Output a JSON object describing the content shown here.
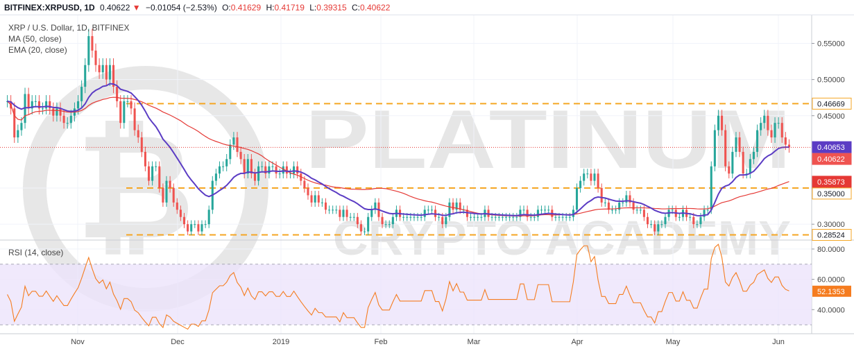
{
  "header": {
    "symbol": "BITFINEX:XRPUSD, 1D",
    "last": "0.40622",
    "arrow": "▼",
    "change": "−0.01054 (−2.53%)",
    "o_label": "O:",
    "o": "0.41629",
    "h_label": "H:",
    "h": "0.41719",
    "l_label": "L:",
    "l": "0.39315",
    "c_label": "C:",
    "c": "0.40622"
  },
  "watermark": {
    "line1": "PLATINUM",
    "line2": "CRYPTO ACADEMY"
  },
  "colors": {
    "up": "#26a69a",
    "down": "#ef5350",
    "ma50": "#e53935",
    "ema20": "#5b3cc4",
    "level": "#f5a623",
    "rsi": "#f57c1f",
    "rsi_band": "#ece3fb",
    "price_line": "#e53935"
  },
  "chart_data": [
    {
      "type": "candlestick",
      "title": "XRP / U.S. Dollar, 1D, BITFINEX",
      "indicators": [
        "MA (50, close)",
        "EMA (20, close)"
      ],
      "x_ticks": [
        "Nov",
        "Dec",
        "2019",
        "Feb",
        "Mar",
        "Apr",
        "May",
        "Jun"
      ],
      "y_ticks": [
        "0.55000",
        "0.50000",
        "0.45000",
        "0.35000",
        "0.30000"
      ],
      "ylim": [
        0.28,
        0.585
      ],
      "horizontal_levels": [
        0.46669,
        0.35,
        0.28524
      ],
      "price_tags": [
        {
          "value": 0.46669,
          "label": "0.46669",
          "bg": "#ffffff",
          "fg": "#131722",
          "border": "#f5a623"
        },
        {
          "value": 0.40653,
          "label": "0.40653",
          "bg": "#5b3cc4",
          "fg": "#ffffff",
          "border": "#5b3cc4"
        },
        {
          "value": 0.40622,
          "label": "0.40622",
          "bg": "#ef5350",
          "fg": "#ffffff",
          "border": "#ef5350"
        },
        {
          "value": 0.35873,
          "label": "0.35873",
          "bg": "#e53935",
          "fg": "#ffffff",
          "border": "#e53935"
        },
        {
          "value": 0.35,
          "label": "0.35000",
          "bg": "#ffffff",
          "fg": "#131722",
          "border": "#f5a623"
        },
        {
          "value": 0.28524,
          "label": "0.28524",
          "bg": "#ffffff",
          "fg": "#131722",
          "border": "#f5a623"
        }
      ],
      "closes": [
        0.47,
        0.46,
        0.42,
        0.43,
        0.44,
        0.48,
        0.46,
        0.47,
        0.47,
        0.46,
        0.46,
        0.47,
        0.46,
        0.45,
        0.46,
        0.45,
        0.44,
        0.44,
        0.45,
        0.46,
        0.47,
        0.49,
        0.52,
        0.56,
        0.54,
        0.52,
        0.51,
        0.52,
        0.5,
        0.52,
        0.49,
        0.47,
        0.44,
        0.47,
        0.47,
        0.46,
        0.43,
        0.42,
        0.4,
        0.38,
        0.36,
        0.38,
        0.38,
        0.35,
        0.33,
        0.36,
        0.35,
        0.33,
        0.32,
        0.31,
        0.3,
        0.29,
        0.3,
        0.3,
        0.29,
        0.3,
        0.3,
        0.32,
        0.36,
        0.37,
        0.38,
        0.38,
        0.39,
        0.41,
        0.42,
        0.4,
        0.39,
        0.37,
        0.39,
        0.37,
        0.36,
        0.38,
        0.38,
        0.37,
        0.38,
        0.38,
        0.37,
        0.37,
        0.38,
        0.37,
        0.37,
        0.38,
        0.37,
        0.36,
        0.35,
        0.34,
        0.33,
        0.34,
        0.33,
        0.33,
        0.32,
        0.32,
        0.32,
        0.32,
        0.31,
        0.32,
        0.31,
        0.31,
        0.31,
        0.3,
        0.29,
        0.29,
        0.31,
        0.32,
        0.33,
        0.31,
        0.3,
        0.3,
        0.3,
        0.31,
        0.32,
        0.31,
        0.31,
        0.31,
        0.31,
        0.31,
        0.31,
        0.31,
        0.32,
        0.32,
        0.32,
        0.31,
        0.31,
        0.3,
        0.31,
        0.33,
        0.32,
        0.33,
        0.32,
        0.32,
        0.31,
        0.31,
        0.31,
        0.31,
        0.31,
        0.32,
        0.31,
        0.31,
        0.31,
        0.31,
        0.31,
        0.31,
        0.31,
        0.31,
        0.31,
        0.32,
        0.32,
        0.31,
        0.31,
        0.31,
        0.32,
        0.32,
        0.32,
        0.32,
        0.31,
        0.31,
        0.31,
        0.31,
        0.31,
        0.31,
        0.32,
        0.35,
        0.36,
        0.37,
        0.37,
        0.36,
        0.37,
        0.35,
        0.33,
        0.33,
        0.32,
        0.32,
        0.32,
        0.33,
        0.33,
        0.34,
        0.33,
        0.32,
        0.32,
        0.32,
        0.31,
        0.3,
        0.3,
        0.29,
        0.3,
        0.3,
        0.31,
        0.32,
        0.32,
        0.31,
        0.31,
        0.32,
        0.31,
        0.31,
        0.3,
        0.3,
        0.31,
        0.32,
        0.32,
        0.38,
        0.43,
        0.45,
        0.43,
        0.38,
        0.37,
        0.4,
        0.42,
        0.4,
        0.37,
        0.37,
        0.39,
        0.4,
        0.43,
        0.44,
        0.45,
        0.43,
        0.42,
        0.44,
        0.44,
        0.42,
        0.41,
        0.40622
      ]
    },
    {
      "type": "line",
      "title": "RSI (14, close)",
      "y_ticks": [
        "80.0000",
        "60.0000",
        "40.0000"
      ],
      "ylim": [
        25,
        85
      ],
      "band": [
        30,
        70
      ],
      "last_value": "52.1353"
    }
  ]
}
